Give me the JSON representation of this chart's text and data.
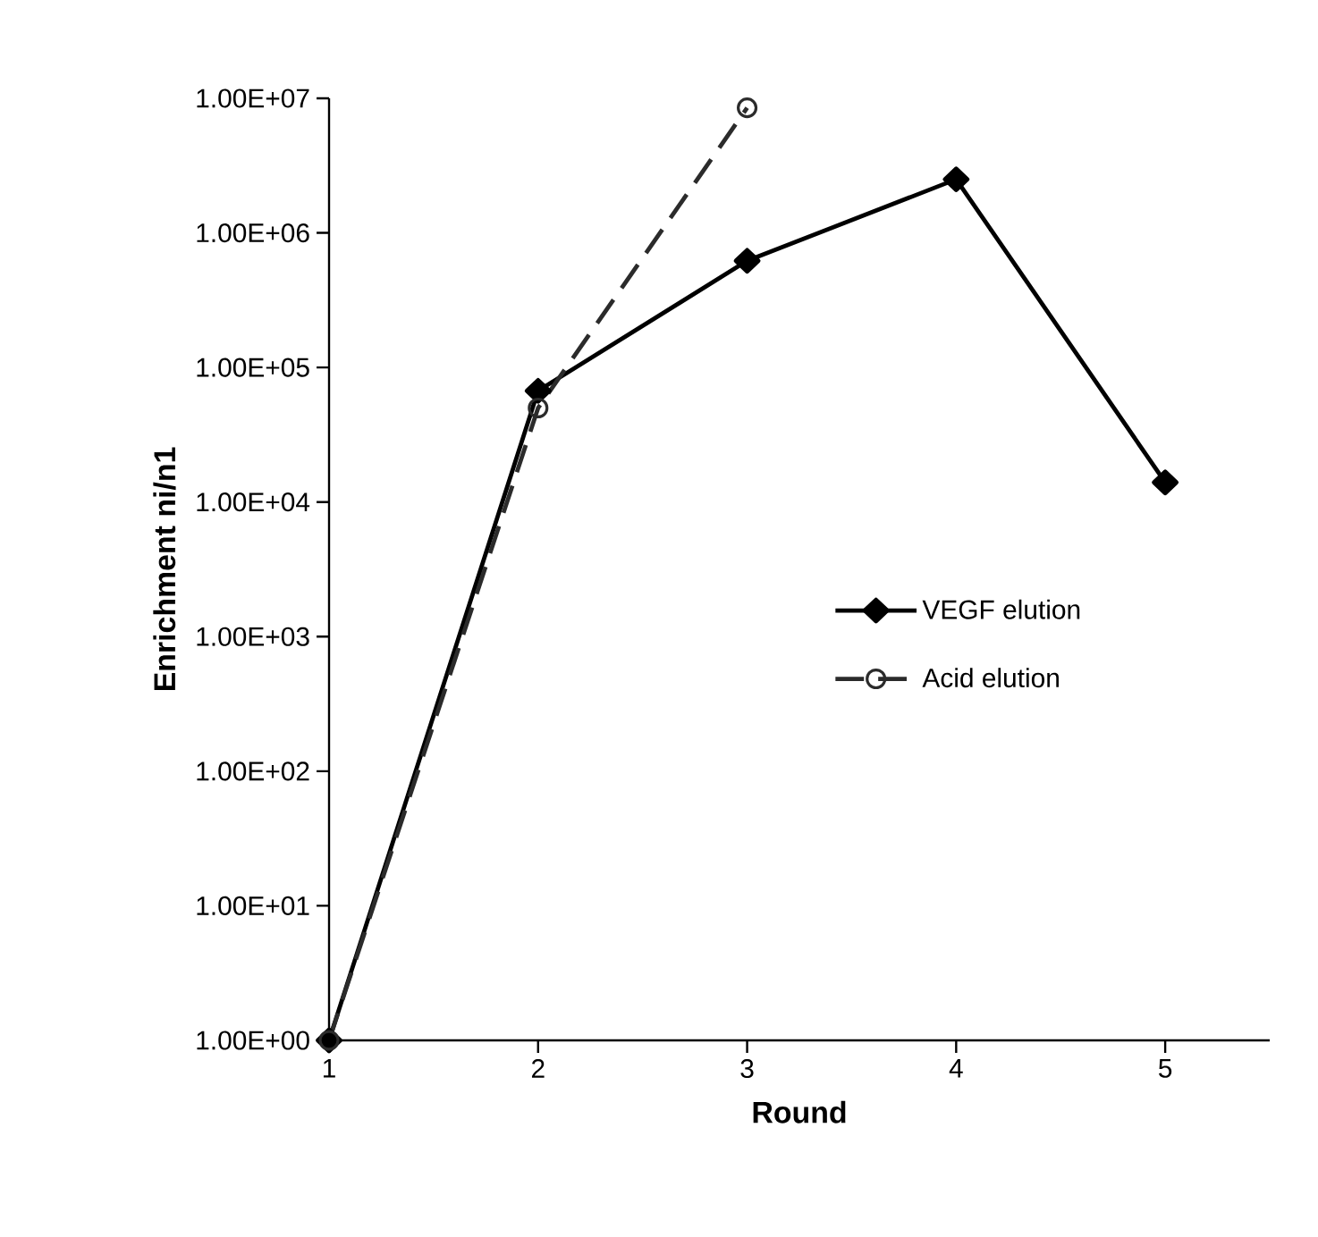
{
  "chart_data": {
    "type": "line",
    "xlabel": "Round",
    "ylabel": "Enrichment ni/n1",
    "log": "y",
    "xlim": [
      1,
      5.5
    ],
    "xticks": [
      1,
      2,
      3,
      4,
      5
    ],
    "ylim": [
      1,
      10000000
    ],
    "yticks": [
      {
        "value": 1,
        "label": "1.00E+00"
      },
      {
        "value": 10,
        "label": "1.00E+01"
      },
      {
        "value": 100,
        "label": "1.00E+02"
      },
      {
        "value": 1000,
        "label": "1.00E+03"
      },
      {
        "value": 10000,
        "label": "1.00E+04"
      },
      {
        "value": 100000,
        "label": "1.00E+05"
      },
      {
        "value": 1000000,
        "label": "1.00E+06"
      },
      {
        "value": 10000000,
        "label": "1.00E+07"
      }
    ],
    "grid": false,
    "legend": "right",
    "series": [
      {
        "name": "VEGF elution",
        "color": "#000000",
        "x": [
          1,
          2,
          3,
          4,
          5
        ],
        "values": [
          1,
          67000,
          620000,
          2500000,
          14000
        ],
        "marker": "diamond",
        "line_style": "solid"
      },
      {
        "name": "Acid elution",
        "color": "#2b2b2b",
        "x": [
          1,
          2,
          3
        ],
        "values": [
          1,
          50000,
          8500000
        ],
        "marker": "circle",
        "line_style": "dashed"
      }
    ]
  }
}
